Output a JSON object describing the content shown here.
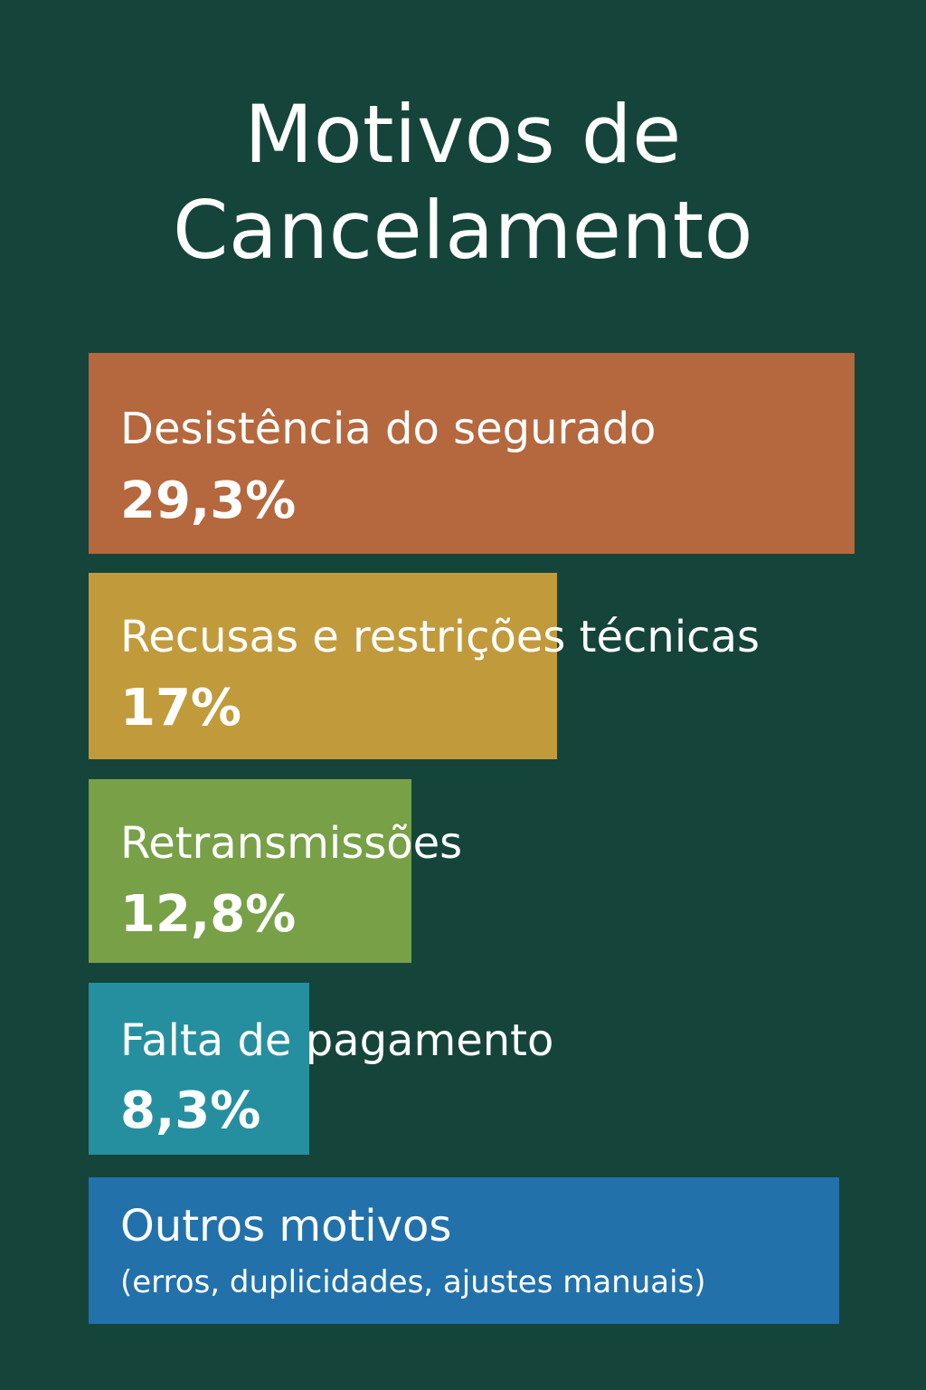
{
  "chart_data": {
    "type": "bar",
    "title_lines": [
      "Motivos de",
      "Cancelamento"
    ],
    "colors": [
      "#b5673d",
      "#c19a3b",
      "#77a047",
      "#258f9f",
      "#2271ab"
    ],
    "items": [
      {
        "label": "Desistência do segurado",
        "value": 29.3,
        "value_label": "29,3%"
      },
      {
        "label": "Recusas e restrições técnicas",
        "value": 17,
        "value_label": "17%"
      },
      {
        "label": "Retransmissões",
        "value": 12.8,
        "value_label": "12,8%"
      },
      {
        "label": "Falta de pagamento",
        "value": 8.3,
        "value_label": "8,3%"
      },
      {
        "label": "Outros motivos",
        "note": "(erros, duplicidades, ajustes manuais)"
      }
    ]
  }
}
